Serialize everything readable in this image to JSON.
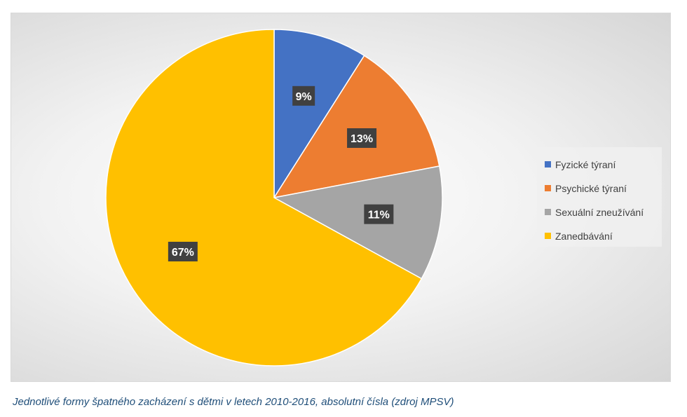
{
  "chart_data": {
    "type": "pie",
    "categories": [
      "Fyzické týraní",
      "Psychické týraní",
      "Sexuální zneužívání",
      "Zanedbávání"
    ],
    "values": [
      9,
      13,
      11,
      67
    ],
    "labels": [
      "9%",
      "13%",
      "11%",
      "67%"
    ],
    "colors": [
      "#4472c4",
      "#ed7d31",
      "#a5a5a5",
      "#ffc000"
    ],
    "legend_position": "right"
  },
  "caption": "Jednotlivé formy špatného zacházení s dětmi v letech 2010-2016, absolutní čísla (zdroj MPSV)"
}
